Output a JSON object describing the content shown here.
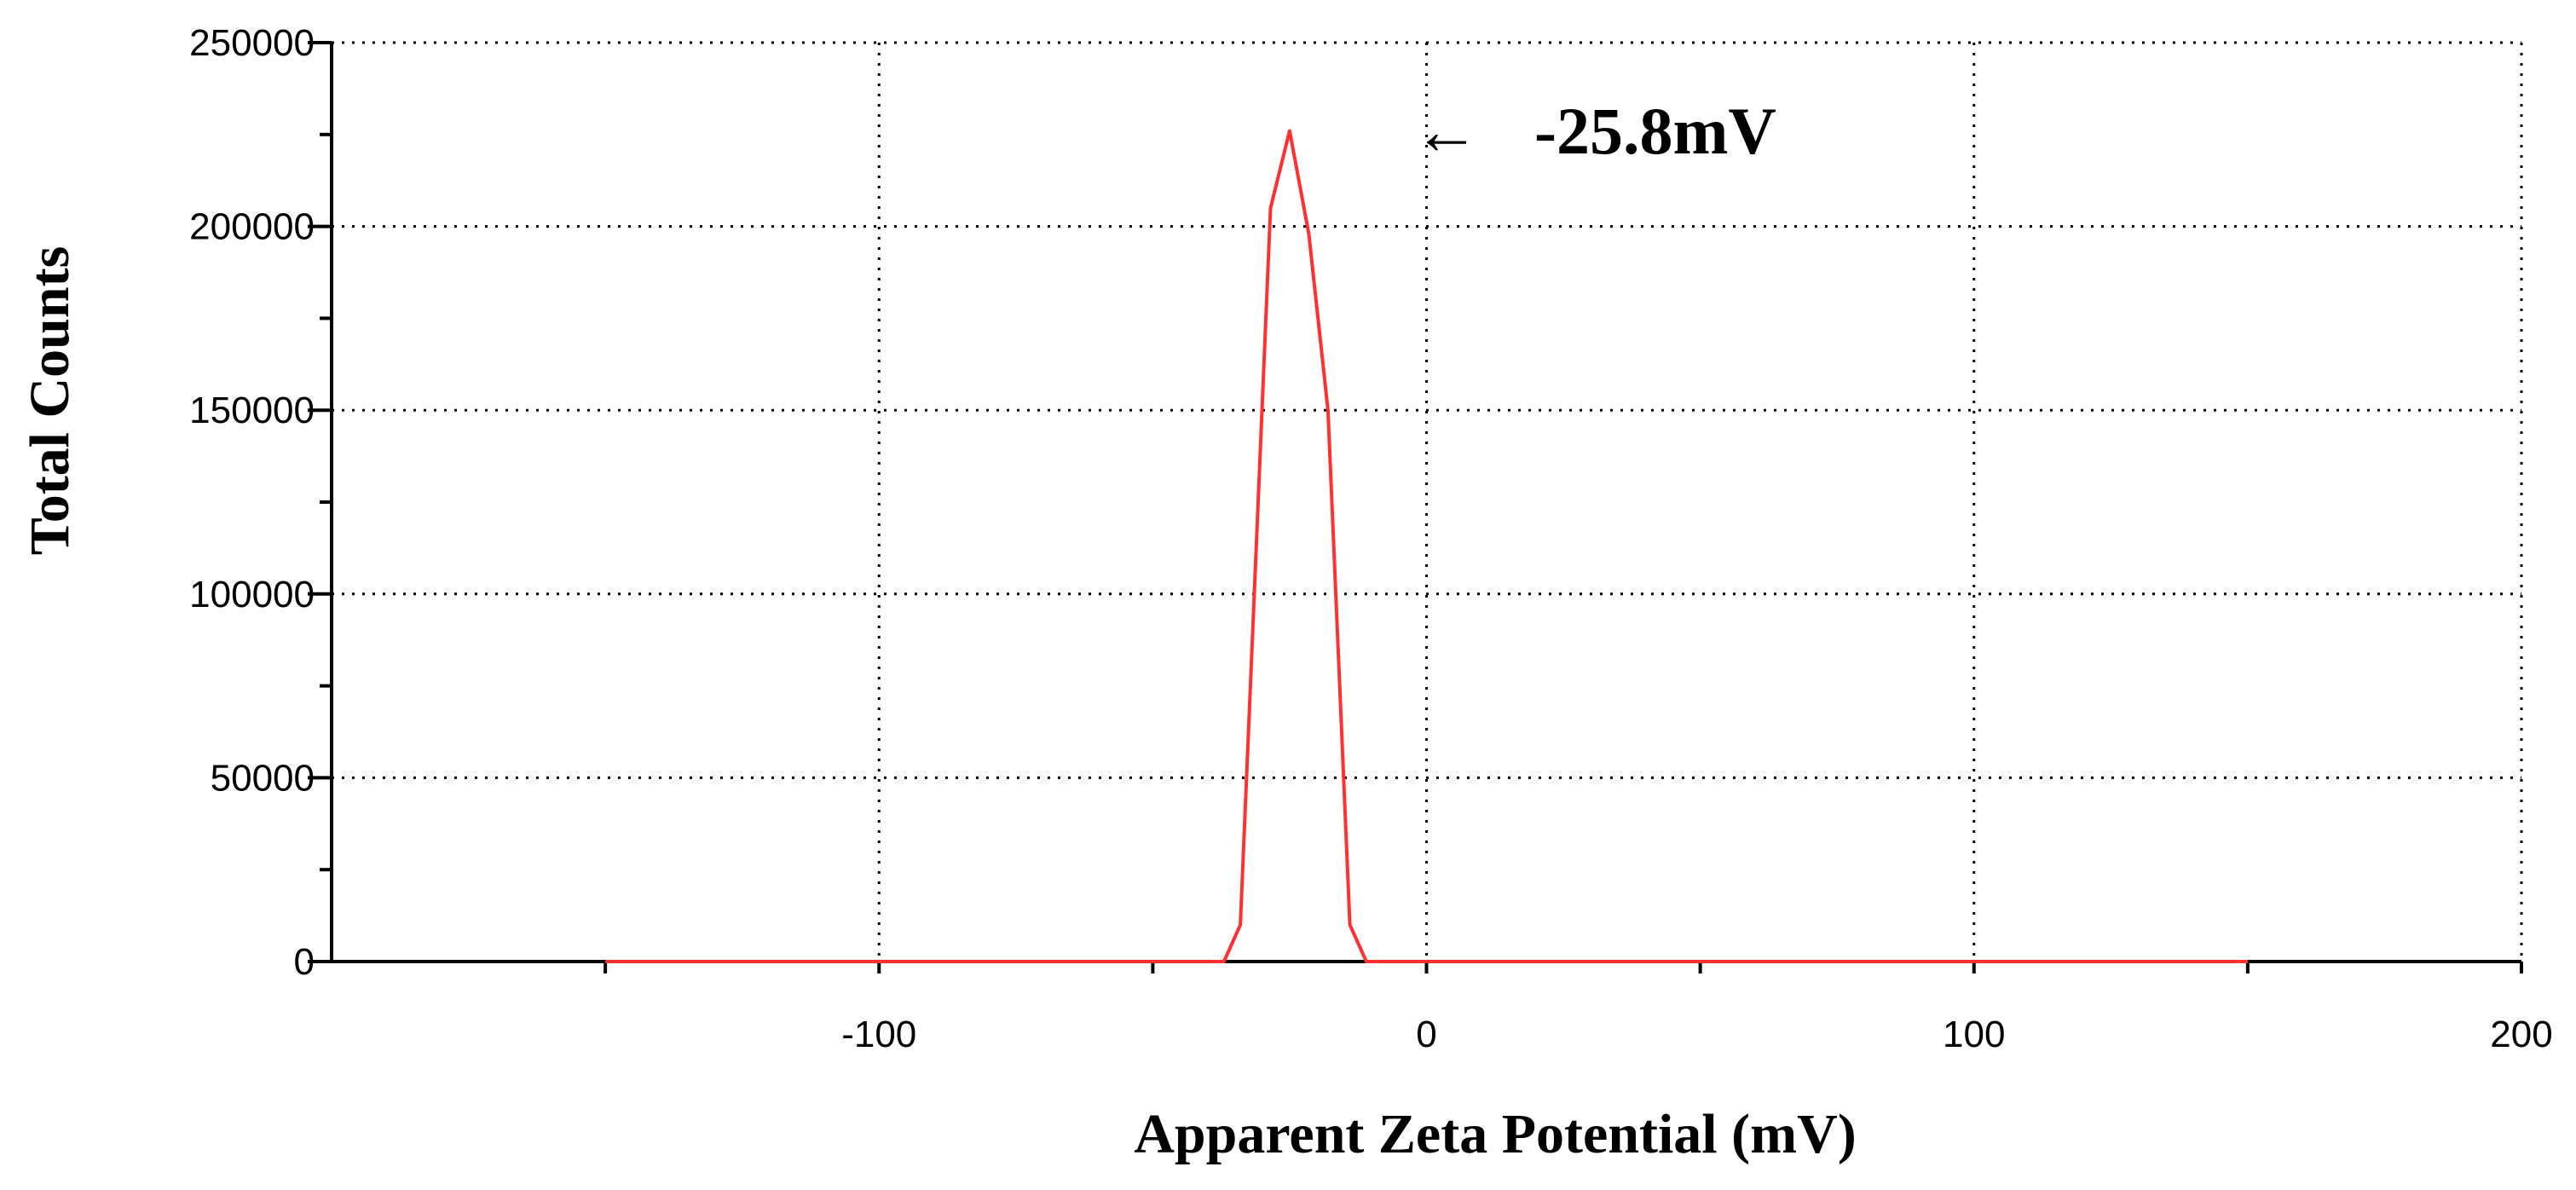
{
  "chart_data": {
    "type": "line",
    "xlabel": "Apparent Zeta Potential (mV)",
    "ylabel": "Total Counts",
    "xlim": [
      -200,
      200
    ],
    "ylim": [
      0,
      250000
    ],
    "x_ticks": [
      -100,
      0,
      100,
      200
    ],
    "x_tick_labels": [
      "-100",
      "0",
      "100",
      "200"
    ],
    "x_minor_ticks": [
      -150,
      -100,
      -50,
      0,
      50,
      100,
      150,
      200
    ],
    "y_ticks": [
      0,
      50000,
      100000,
      150000,
      200000,
      250000
    ],
    "y_tick_labels": [
      "0",
      "50000",
      "100000",
      "150000",
      "200000",
      "250000"
    ],
    "grid": "dotted",
    "annotation": {
      "arrow": "←",
      "text": "-25.8mV",
      "x": -25.8,
      "y": 226000
    },
    "series": [
      {
        "color": "#ff3030",
        "x": [
          -150,
          -50,
          -37,
          -34,
          -28.5,
          -25,
          -21.5,
          -18,
          -14,
          -11,
          -8,
          0,
          50,
          150
        ],
        "y": [
          0,
          0,
          0,
          10000,
          205000,
          226000,
          198000,
          150000,
          10000,
          0,
          0,
          0,
          0,
          0
        ]
      }
    ]
  }
}
